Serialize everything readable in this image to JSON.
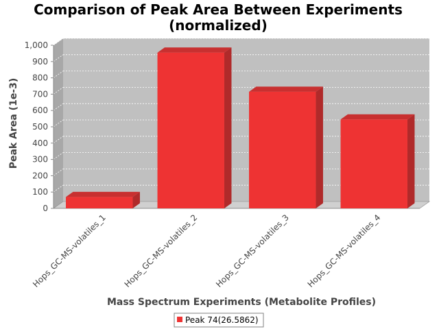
{
  "chart_data": {
    "type": "bar",
    "title_lines": [
      "Comparison of Peak Area Between Experiments",
      "(normalized)"
    ],
    "xlabel": "Mass Spectrum Experiments (Metabolite Profiles)",
    "ylabel": "Peak Area (1e-3)",
    "categories": [
      "Hops_GC-MS-volatiles_1",
      "Hops_GC-MS-volatiles_2",
      "Hops_GC-MS-volatiles_3",
      "Hops_GC-MS-volatiles_4"
    ],
    "series": [
      {
        "name": "Peak 74(26.5862)",
        "values": [
          70,
          955,
          715,
          545
        ],
        "color": "#ee3333"
      }
    ],
    "ylim": [
      0,
      1000
    ],
    "yticks": [
      0,
      100,
      200,
      300,
      400,
      500,
      600,
      700,
      800,
      900,
      1000
    ],
    "ytick_labels": [
      "0",
      "100",
      "200",
      "300",
      "400",
      "500",
      "600",
      "700",
      "800",
      "900",
      "1,000"
    ],
    "grid": true,
    "legend_position": "bottom",
    "plot_background": "#c0c0c0"
  }
}
